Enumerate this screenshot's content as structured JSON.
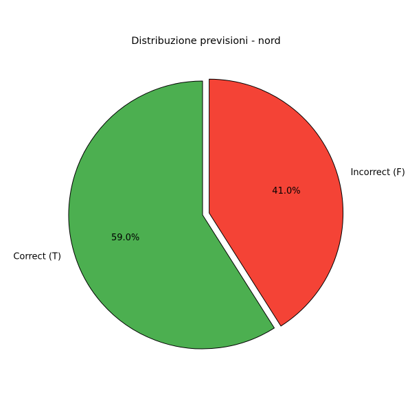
{
  "chart_data": {
    "type": "pie",
    "title": "Distribuzione previsioni - nord",
    "categories": [
      "Correct (T)",
      "Incorrect (F)"
    ],
    "values": [
      59.0,
      41.0
    ],
    "value_labels": [
      "59.0%",
      "41.0%"
    ],
    "colors": [
      "#4caf50",
      "#f44336"
    ],
    "edge_color": "#000000",
    "start_angle_deg": 90,
    "direction": "counterclockwise",
    "exploded": [
      "Incorrect (F)"
    ]
  }
}
